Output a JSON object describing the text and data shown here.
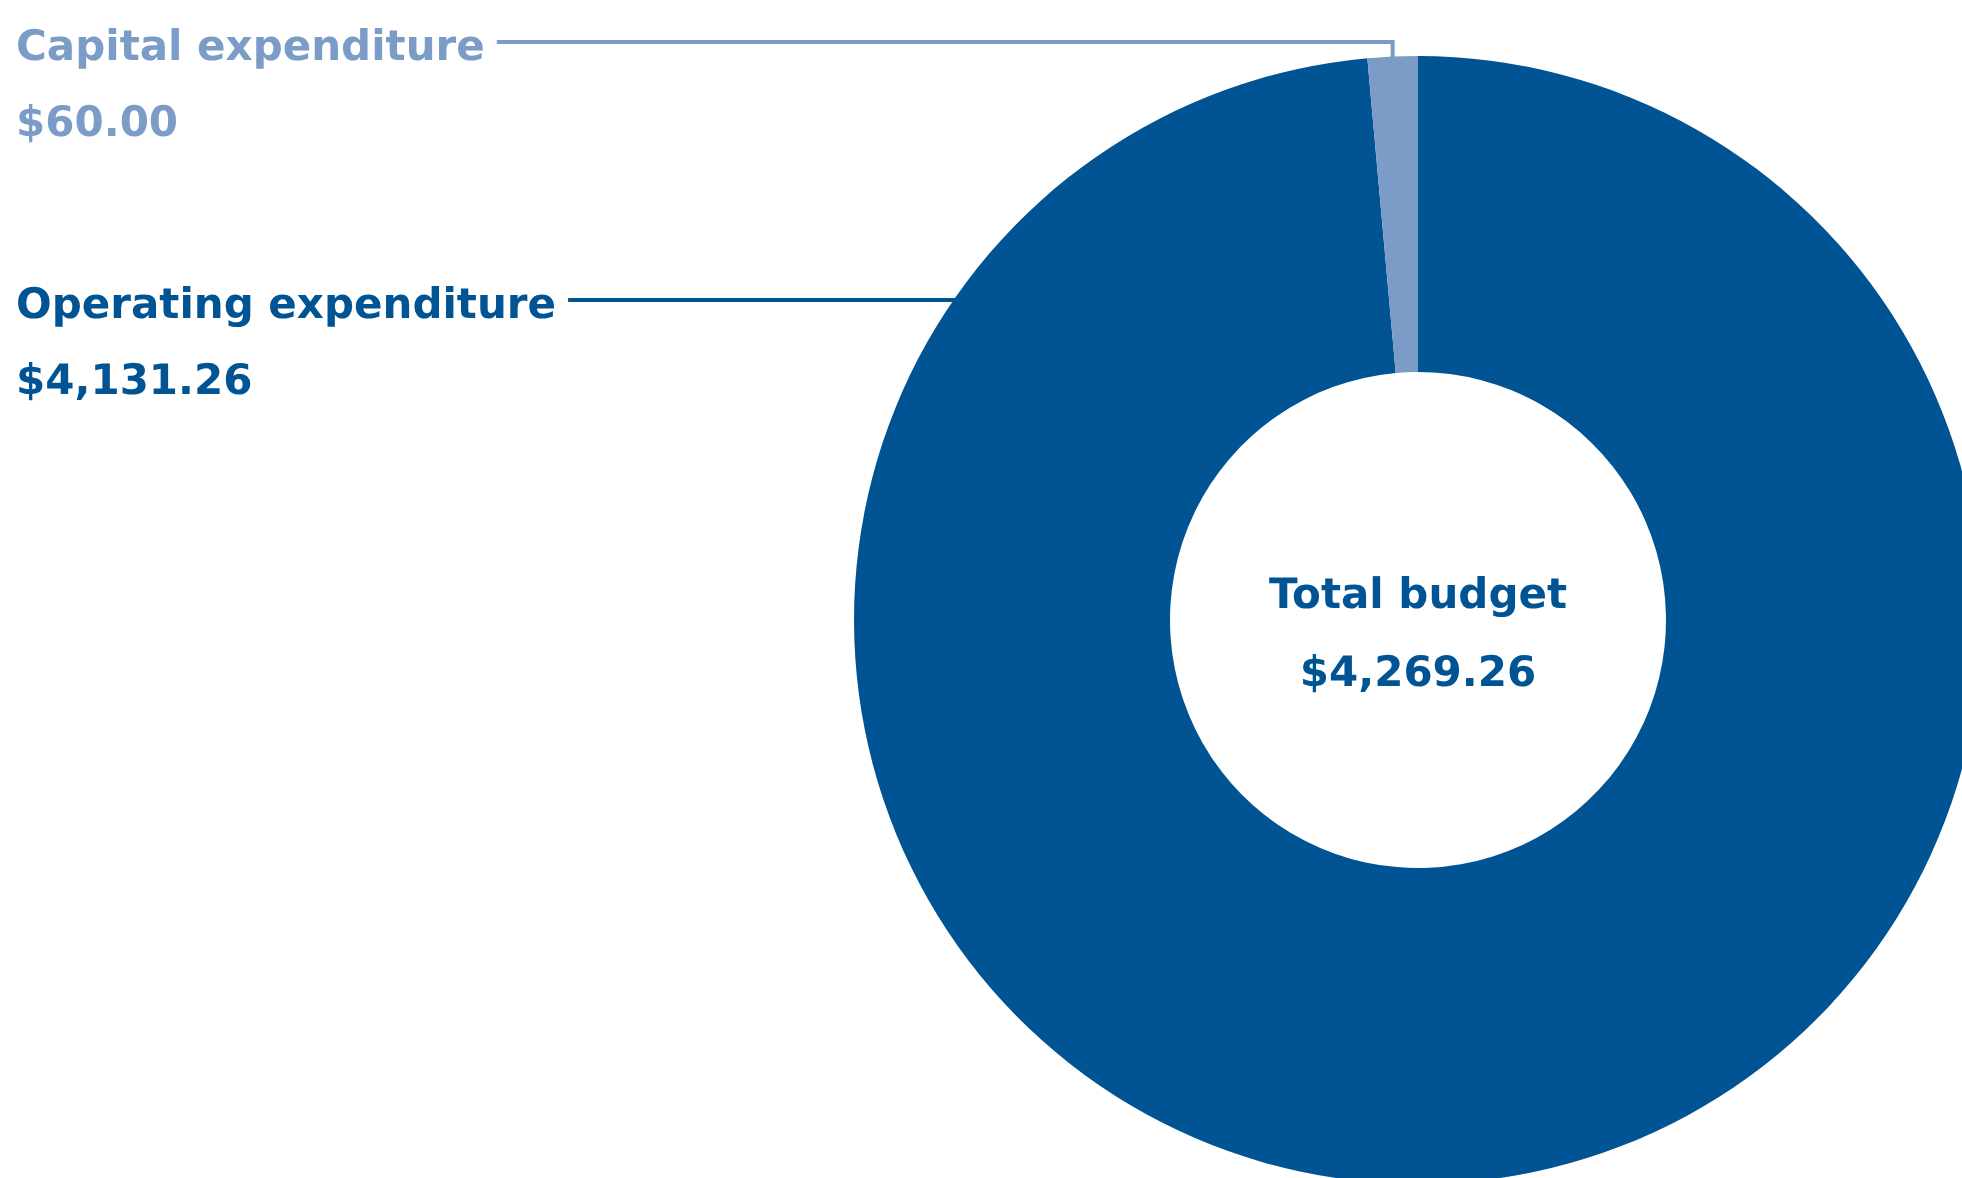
{
  "chart_data": {
    "type": "donut",
    "title": "Total budget",
    "subtitle": "$4,269.26",
    "categories": [
      "Operating expenditure",
      "Capital expenditure"
    ],
    "values": [
      4131.26,
      60.0
    ],
    "value_labels": [
      "$4,131.26",
      "$60.00"
    ],
    "colors": [
      "#005493",
      "#7a9cc6"
    ]
  }
}
